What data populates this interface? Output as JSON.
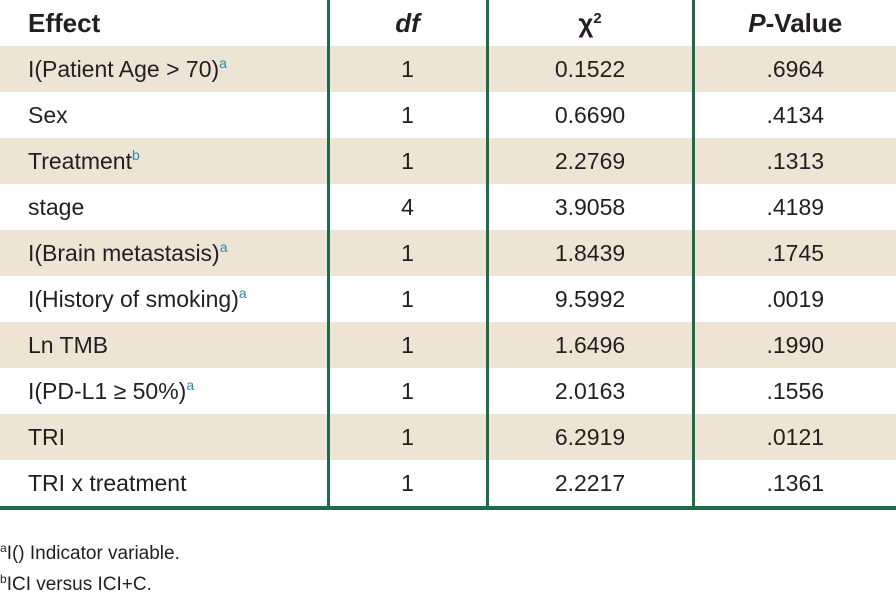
{
  "table": {
    "header": [
      {
        "text": "Effect"
      },
      {
        "italic": "df"
      },
      {
        "text": "χ",
        "sup": "2"
      },
      {
        "italic": "P",
        "text": "-Value"
      }
    ],
    "rows": [
      {
        "effect": "I(Patient Age > 70)",
        "note": "a",
        "df": "1",
        "chi2": "0.1522",
        "p": ".6964"
      },
      {
        "effect": "Sex",
        "df": "1",
        "chi2": "0.6690",
        "p": ".4134"
      },
      {
        "effect": "Treatment",
        "note": "b",
        "df": "1",
        "chi2": "2.2769",
        "p": ".1313"
      },
      {
        "effect": "stage",
        "df": "4",
        "chi2": "3.9058",
        "p": ".4189"
      },
      {
        "effect": "I(Brain metastasis)",
        "note": "a",
        "df": "1",
        "chi2": "1.8439",
        "p": ".1745"
      },
      {
        "effect": "I(History of smoking)",
        "note": "a",
        "df": "1",
        "chi2": "9.5992",
        "p": ".0019"
      },
      {
        "effect": "Ln TMB",
        "df": "1",
        "chi2": "1.6496",
        "p": ".1990"
      },
      {
        "effect": "I(PD-L1 ≥ 50%)",
        "note": "a",
        "df": "1",
        "chi2": "2.0163",
        "p": ".1556"
      },
      {
        "effect": "TRI",
        "df": "1",
        "chi2": "6.2919",
        "p": ".0121"
      },
      {
        "effect": "TRI x treatment",
        "df": "1",
        "chi2": "2.2217",
        "p": ".1361"
      }
    ]
  },
  "footnotes": [
    {
      "mark": "a",
      "text": "I() Indicator variable."
    },
    {
      "mark": "b",
      "text": "ICI versus ICI+C."
    }
  ]
}
